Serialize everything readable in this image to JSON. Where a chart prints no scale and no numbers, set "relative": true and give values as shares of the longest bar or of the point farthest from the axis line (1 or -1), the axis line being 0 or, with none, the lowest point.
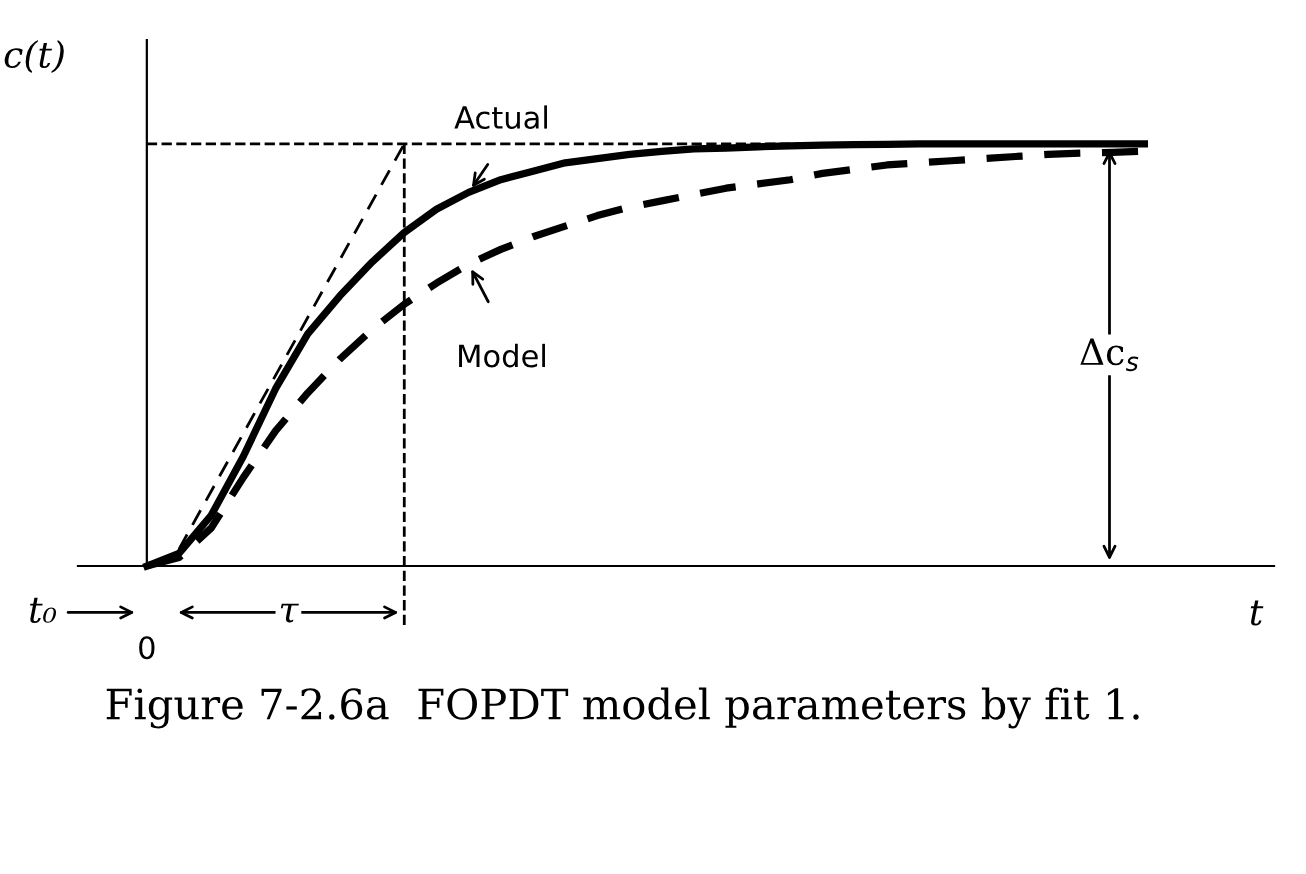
{
  "chart_data": {
    "type": "line",
    "relative": true,
    "xlabel": "t",
    "ylabel": "c(t)",
    "categories": [
      null,
      null,
      null,
      null,
      null,
      null,
      null,
      null,
      null,
      null,
      null,
      null,
      null,
      null,
      null,
      null,
      null,
      null,
      null,
      null,
      null,
      null,
      null,
      null,
      null,
      null,
      null,
      null,
      null,
      null,
      null,
      null
    ],
    "series": [
      {
        "name": "Actual",
        "color": "#000000",
        "line_style": "solid",
        "values": [
          0,
          0.03,
          0.12,
          0.26,
          0.42,
          0.55,
          0.64,
          0.72,
          0.79,
          0.845,
          0.885,
          0.915,
          0.935,
          0.955,
          0.965,
          0.975,
          0.982,
          0.988,
          0.99,
          0.993,
          0.995,
          0.997,
          0.998,
          0.999,
          1,
          1,
          1,
          1,
          1,
          1,
          1,
          1
        ]
      },
      {
        "name": "Model",
        "color": "#000000",
        "line_style": "dashed",
        "values": [
          0,
          0.02,
          0.09,
          0.21,
          0.32,
          0.41,
          0.49,
          0.56,
          0.62,
          0.67,
          0.715,
          0.75,
          0.78,
          0.805,
          0.83,
          0.85,
          0.865,
          0.88,
          0.895,
          0.905,
          0.915,
          0.93,
          0.94,
          0.95,
          0.955,
          0.96,
          0.965,
          0.97,
          0.975,
          0.978,
          0.98,
          0.983
        ]
      },
      {
        "color": "#000000",
        "line_style": "dashed",
        "values": [
          null,
          0.04,
          null,
          null,
          null,
          null,
          null,
          null,
          1,
          null,
          null,
          null,
          null,
          null,
          null,
          null,
          null,
          null,
          null,
          null,
          null,
          null,
          null,
          null,
          null,
          null,
          null,
          null,
          null,
          null,
          null,
          null
        ]
      }
    ],
    "ref_lines": [
      {
        "axis": "y",
        "value": 1,
        "line_style": "dashed",
        "color": "#000000"
      }
    ],
    "annotations": [
      "Δc$_{s}$",
      "τ",
      "t₀",
      "0",
      "Figure 7-2.6a  FOPDT model parameters by fit 1."
    ]
  }
}
